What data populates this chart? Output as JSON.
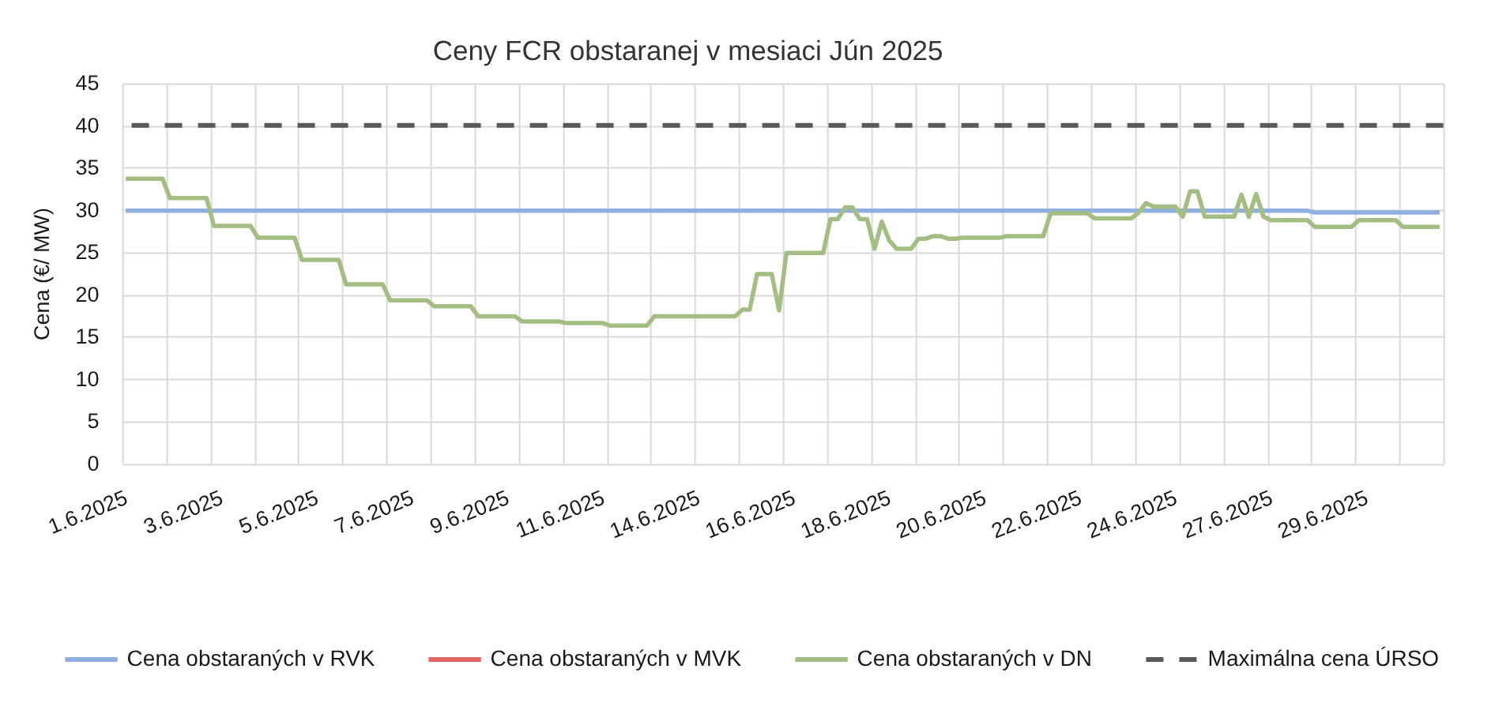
{
  "chart_data": {
    "type": "line",
    "title": "Ceny FCR obstaranej v mesiaci Jún 2025",
    "ylabel": "Cena (€/ MW)",
    "categories": [
      "1.6.2025",
      null,
      null,
      null,
      null,
      null,
      null,
      null,
      null,
      null,
      null,
      null,
      null,
      "3.6.2025",
      null,
      null,
      null,
      null,
      null,
      null,
      null,
      null,
      null,
      null,
      null,
      null,
      "5.6.2025",
      null,
      null,
      null,
      null,
      null,
      null,
      null,
      null,
      null,
      null,
      null,
      null,
      "7.6.2025",
      null,
      null,
      null,
      null,
      null,
      null,
      null,
      null,
      null,
      null,
      null,
      null,
      "9.6.2025",
      null,
      null,
      null,
      null,
      null,
      null,
      null,
      null,
      null,
      null,
      null,
      null,
      "11.6.2025",
      null,
      null,
      null,
      null,
      null,
      null,
      null,
      null,
      null,
      null,
      null,
      null,
      "14.6.2025",
      null,
      null,
      null,
      null,
      null,
      null,
      null,
      null,
      null,
      null,
      null,
      null,
      "16.6.2025",
      null,
      null,
      null,
      null,
      null,
      null,
      null,
      null,
      null,
      null,
      null,
      null,
      "18.6.2025",
      null,
      null,
      null,
      null,
      null,
      null,
      null,
      null,
      null,
      null,
      null,
      null,
      "20.6.2025",
      null,
      null,
      null,
      null,
      null,
      null,
      null,
      null,
      null,
      null,
      null,
      null,
      "22.6.2025",
      null,
      null,
      null,
      null,
      null,
      null,
      null,
      null,
      null,
      null,
      null,
      null,
      "24.6.2025",
      null,
      null,
      null,
      null,
      null,
      null,
      null,
      null,
      null,
      null,
      null,
      null,
      "27.6.2025",
      null,
      null,
      null,
      null,
      null,
      null,
      null,
      null,
      null,
      null,
      null,
      null,
      "29.6.2025",
      null,
      null,
      null,
      null,
      null,
      null,
      null,
      null,
      null,
      null
    ],
    "series": [
      {
        "name": "Cena obstaraných v RVK",
        "color": "#8fb0de",
        "values": [
          29.9,
          29.9,
          29.9,
          29.9,
          29.9,
          29.9,
          29.9,
          29.9,
          29.9,
          29.9,
          29.9,
          29.9,
          29.9,
          29.9,
          29.9,
          29.9,
          29.9,
          29.9,
          29.9,
          29.9,
          29.9,
          29.9,
          29.9,
          29.9,
          29.9,
          29.9,
          29.9,
          29.9,
          29.9,
          29.9,
          29.9,
          29.9,
          29.9,
          29.9,
          29.9,
          29.9,
          29.9,
          29.9,
          29.9,
          29.9,
          29.9,
          29.9,
          29.9,
          29.9,
          29.9,
          29.9,
          29.9,
          29.9,
          29.9,
          29.9,
          29.9,
          29.9,
          29.9,
          29.9,
          29.9,
          29.9,
          29.9,
          29.9,
          29.9,
          29.9,
          29.9,
          29.9,
          29.9,
          29.9,
          29.9,
          29.9,
          29.9,
          29.9,
          29.9,
          29.9,
          29.9,
          29.9,
          29.9,
          29.9,
          29.9,
          29.9,
          29.9,
          29.9,
          29.9,
          29.9,
          29.9,
          29.9,
          29.9,
          29.9,
          29.9,
          29.9,
          29.9,
          29.9,
          29.9,
          29.9,
          29.9,
          29.9,
          29.9,
          29.9,
          29.9,
          29.9,
          29.9,
          29.9,
          29.9,
          29.9,
          29.9,
          29.9,
          29.9,
          29.9,
          29.9,
          29.9,
          29.9,
          29.9,
          29.9,
          29.9,
          29.9,
          29.9,
          29.9,
          29.9,
          29.9,
          29.9,
          29.9,
          29.9,
          29.9,
          29.9,
          29.9,
          29.9,
          29.9,
          29.9,
          29.9,
          29.9,
          29.9,
          29.9,
          29.9,
          29.9,
          29.9,
          29.9,
          29.9,
          29.9,
          29.9,
          29.9,
          29.9,
          29.9,
          29.9,
          29.9,
          29.9,
          29.9,
          29.9,
          29.9,
          29.9,
          29.9,
          29.9,
          29.9,
          29.9,
          29.9,
          29.9,
          29.9,
          29.9,
          29.9,
          29.9,
          29.9,
          29.9,
          29.9,
          29.9,
          29.9,
          29.9,
          29.9,
          29.7,
          29.7,
          29.7,
          29.7,
          29.7,
          29.7,
          29.7,
          29.7,
          29.7,
          29.7,
          29.7,
          29.7,
          29.7,
          29.7,
          29.7,
          29.7,
          29.7,
          29.7
        ]
      },
      {
        "name": "Cena obstaraných v MVK",
        "color": "#e46464",
        "values": [
          null,
          null,
          null,
          null,
          null,
          null,
          null,
          null,
          null,
          null,
          null,
          null,
          null,
          null,
          null,
          null,
          null,
          null,
          null,
          null,
          null,
          null,
          null,
          null,
          null,
          null,
          null,
          null,
          null,
          null,
          null,
          null,
          null,
          null,
          null,
          null,
          null,
          null,
          null,
          null,
          null,
          null,
          null,
          null,
          null,
          null,
          null,
          null,
          null,
          null,
          null,
          null,
          null,
          null,
          null,
          null,
          null,
          null,
          null,
          null,
          null,
          null,
          null,
          null,
          null,
          null,
          null,
          null,
          null,
          null,
          null,
          null,
          null,
          null,
          null,
          null,
          null,
          null,
          null,
          null,
          null,
          null,
          null,
          null,
          null,
          null,
          null,
          null,
          null,
          null,
          null,
          null,
          null,
          null,
          null,
          null,
          null,
          null,
          null,
          null,
          null,
          null,
          null,
          null,
          null,
          null,
          null,
          null,
          null,
          null,
          null,
          null,
          null,
          null,
          null,
          null,
          null,
          null,
          null,
          null,
          null,
          null,
          null,
          null,
          null,
          null,
          null,
          null,
          null,
          null,
          null,
          null,
          null,
          null,
          null,
          null,
          null,
          null,
          null,
          null,
          null,
          null,
          null,
          null,
          null,
          null,
          null,
          null,
          null,
          null,
          null,
          null,
          null,
          null,
          null,
          null,
          null,
          null,
          null,
          null,
          null,
          null,
          null,
          null,
          null,
          null,
          null,
          null,
          null,
          null,
          null,
          null,
          null,
          null,
          null,
          null,
          null,
          null,
          null,
          null
        ]
      },
      {
        "name": "Cena obstaraných v DN",
        "color": "#a4bd82",
        "values": [
          33.7,
          33.7,
          33.7,
          33.7,
          33.7,
          33.7,
          31.4,
          31.4,
          31.4,
          31.4,
          31.4,
          31.4,
          28.1,
          28.1,
          28.1,
          28.1,
          28.1,
          28.1,
          26.7,
          26.7,
          26.7,
          26.7,
          26.7,
          26.7,
          24.1,
          24.1,
          24.1,
          24.1,
          24.1,
          24.1,
          21.2,
          21.2,
          21.2,
          21.2,
          21.2,
          21.2,
          19.3,
          19.3,
          19.3,
          19.3,
          19.3,
          19.3,
          18.6,
          18.6,
          18.6,
          18.6,
          18.6,
          18.6,
          17.4,
          17.4,
          17.4,
          17.4,
          17.4,
          17.4,
          16.8,
          16.8,
          16.8,
          16.8,
          16.8,
          16.8,
          16.6,
          16.6,
          16.6,
          16.6,
          16.6,
          16.6,
          16.3,
          16.3,
          16.3,
          16.3,
          16.3,
          16.3,
          17.4,
          17.4,
          17.4,
          17.4,
          17.4,
          17.4,
          17.4,
          17.4,
          17.4,
          17.4,
          17.4,
          17.4,
          18.2,
          18.2,
          22.4,
          22.4,
          22.4,
          18.1,
          24.9,
          24.9,
          24.9,
          24.9,
          24.9,
          24.9,
          28.9,
          28.9,
          30.3,
          30.3,
          28.9,
          28.9,
          25.4,
          28.6,
          26.4,
          25.4,
          25.4,
          25.4,
          26.6,
          26.6,
          26.9,
          26.9,
          26.6,
          26.6,
          26.7,
          26.7,
          26.7,
          26.7,
          26.7,
          26.7,
          26.9,
          26.9,
          26.9,
          26.9,
          26.9,
          26.9,
          29.6,
          29.6,
          29.6,
          29.6,
          29.6,
          29.6,
          29,
          29,
          29,
          29,
          29,
          29,
          29.7,
          30.8,
          30.4,
          30.4,
          30.4,
          30.4,
          29.2,
          32.2,
          32.2,
          29.2,
          29.2,
          29.2,
          29.2,
          29.2,
          31.8,
          29.2,
          31.9,
          29.2,
          28.8,
          28.8,
          28.8,
          28.8,
          28.8,
          28.8,
          28,
          28,
          28,
          28,
          28,
          28,
          28.8,
          28.8,
          28.8,
          28.8,
          28.8,
          28.8,
          28,
          28,
          28,
          28,
          28,
          28
        ]
      }
    ],
    "ref_lines": [
      {
        "axis": "y",
        "value": 40,
        "label": "Maximálna cena ÚRSO",
        "color": "#595959",
        "line_style": "dashed"
      }
    ],
    "ylim": [
      0,
      45
    ],
    "yticks": [
      0,
      5,
      10,
      15,
      20,
      25,
      30,
      35,
      40,
      45
    ],
    "grid": true,
    "legend": "bottom"
  }
}
